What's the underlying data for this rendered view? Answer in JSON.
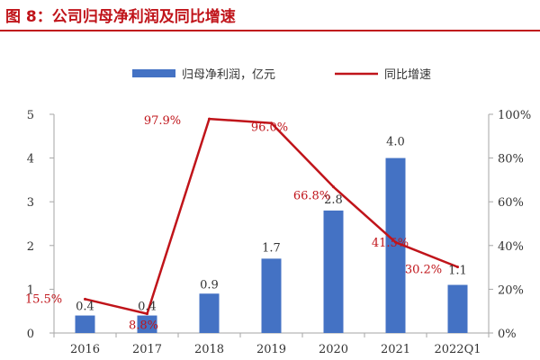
{
  "figure_title": "图 8：公司归母净利润及同比增速",
  "chart_data": {
    "type": "bar",
    "categories": [
      "2016",
      "2017",
      "2018",
      "2019",
      "2020",
      "2021",
      "2022Q1"
    ],
    "series": [
      {
        "name": "归母净利润，亿元",
        "type": "bar",
        "axis": "left",
        "values": [
          0.4,
          0.4,
          0.9,
          1.7,
          2.8,
          4.0,
          1.1
        ],
        "labels": [
          "0.4",
          "0.4",
          "0.9",
          "1.7",
          "2.8",
          "4.0",
          "1.1"
        ],
        "color": "#4472c4"
      },
      {
        "name": "同比增速",
        "type": "line",
        "axis": "right",
        "values": [
          15.5,
          8.8,
          97.9,
          96.0,
          66.8,
          41.5,
          30.2
        ],
        "labels": [
          "15.5%",
          "8.8%",
          "97.9%",
          "96.0%",
          "66.8%",
          "41.5%",
          "30.2%"
        ],
        "color": "#c0141a"
      }
    ],
    "ylim_left": [
      0,
      5
    ],
    "yticks_left": [
      "0",
      "1",
      "2",
      "3",
      "4",
      "5"
    ],
    "ylim_right": [
      0,
      100
    ],
    "yticks_right": [
      "0%",
      "20%",
      "40%",
      "60%",
      "80%",
      "100%"
    ],
    "legend_position": "top-center",
    "grid": false
  }
}
